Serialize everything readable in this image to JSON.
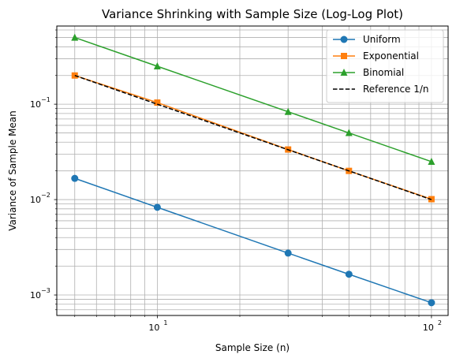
{
  "chart_data": {
    "type": "line",
    "title": "Variance Shrinking with Sample Size (Log-Log Plot)",
    "xlabel": "Sample Size (n)",
    "ylabel": "Variance of Sample Mean",
    "xscale": "log",
    "yscale": "log",
    "xlim": [
      4.3,
      115
    ],
    "ylim": [
      0.00061,
      0.66
    ],
    "grid": true,
    "legend_position": "top-right",
    "x_ticks": [
      {
        "value": 10,
        "base": "10",
        "exp": "1"
      },
      {
        "value": 100,
        "base": "10",
        "exp": "2"
      }
    ],
    "y_ticks": [
      {
        "value": 0.001,
        "base": "10",
        "exp": "−3"
      },
      {
        "value": 0.01,
        "base": "10",
        "exp": "−2"
      },
      {
        "value": 0.1,
        "base": "10",
        "exp": "−1"
      }
    ],
    "x": [
      5,
      10,
      30,
      50,
      100
    ],
    "series": [
      {
        "name": "Uniform",
        "color": "#1f77b4",
        "marker": "circle",
        "linestyle": "solid",
        "values": [
          0.0167,
          0.0083,
          0.00275,
          0.00165,
          0.00083
        ]
      },
      {
        "name": "Exponential",
        "color": "#ff7f0e",
        "marker": "square",
        "linestyle": "solid",
        "values": [
          0.2,
          0.104,
          0.0335,
          0.02,
          0.0101
        ]
      },
      {
        "name": "Binomial",
        "color": "#2ca02c",
        "marker": "triangle",
        "linestyle": "solid",
        "values": [
          0.5,
          0.25,
          0.0833,
          0.05,
          0.025
        ]
      },
      {
        "name": "Reference 1/n",
        "color": "#000000",
        "marker": "none",
        "linestyle": "dashed",
        "values": [
          0.2,
          0.1,
          0.0333,
          0.02,
          0.01
        ]
      }
    ]
  }
}
